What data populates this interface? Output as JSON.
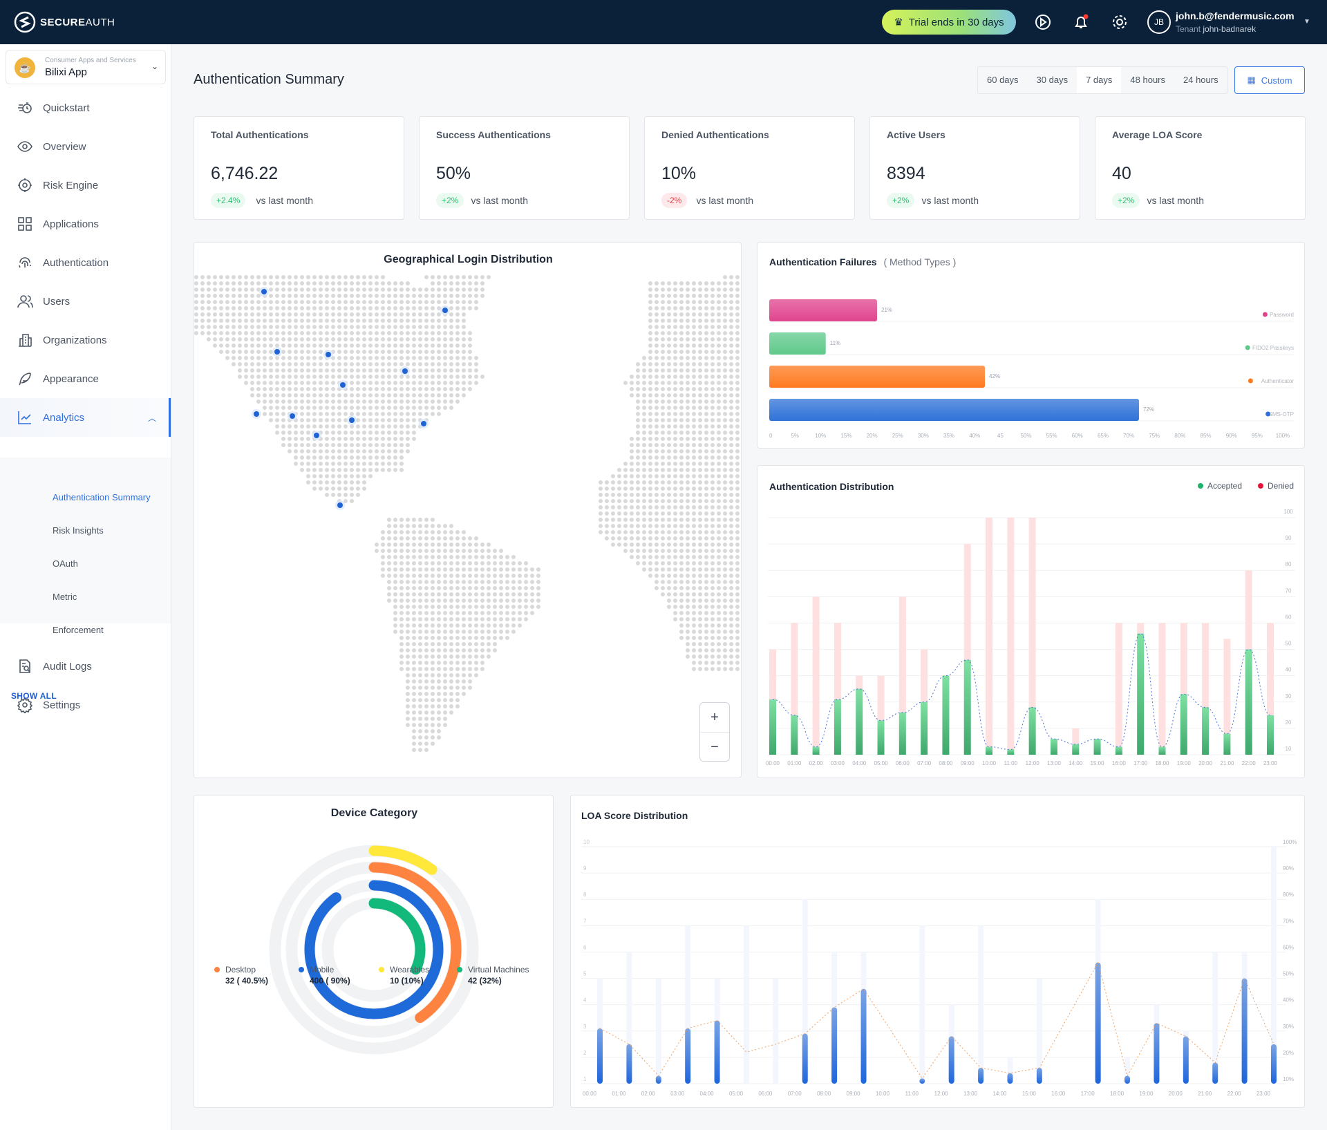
{
  "header": {
    "brand_bold": "SECURE",
    "brand_light": "AUTH",
    "trial": "Trial ends in 30 days",
    "user_initials": "JB",
    "user_email": "john.b@fendermusic.com",
    "tenant_label": "Tenant",
    "tenant": "john-badnarek",
    "icons": [
      "crown-icon",
      "play-icon",
      "bell-icon",
      "gear-icon"
    ]
  },
  "sidebar": {
    "app_category": "Consumer Apps and Services",
    "app_name": "Bilixi App",
    "items": [
      {
        "label": "Quickstart",
        "icon": "quickstart-icon"
      },
      {
        "label": "Overview",
        "icon": "eye-icon"
      },
      {
        "label": "Risk Engine",
        "icon": "risk-engine-icon"
      },
      {
        "label": "Applications",
        "icon": "grid-icon"
      },
      {
        "label": "Authentication",
        "icon": "fingerprint-icon"
      },
      {
        "label": "Users",
        "icon": "users-icon"
      },
      {
        "label": "Organizations",
        "icon": "building-icon"
      },
      {
        "label": "Appearance",
        "icon": "feather-icon"
      },
      {
        "label": "Analytics",
        "icon": "chart-line-icon",
        "active": true
      }
    ],
    "subitems": [
      "Authentication Summary",
      "Risk Insights",
      "OAuth",
      "Metric",
      "Enforcement"
    ],
    "bottom": [
      {
        "label": "Audit Logs",
        "icon": "audit-icon"
      },
      {
        "label": "Settings",
        "icon": "gear-icon"
      }
    ],
    "show_all": "SHOW ALL"
  },
  "page": {
    "title": "Authentication Summary",
    "ranges": [
      "60 days",
      "30 days",
      "7 days",
      "48 hours",
      "24 hours"
    ],
    "selected_range": "7 days",
    "custom": "Custom"
  },
  "kpis": [
    {
      "label": "Total Authentications",
      "value": "6,746.22",
      "change": "+2.4%",
      "trend": "up",
      "vs": "vs last month"
    },
    {
      "label": "Success Authentications",
      "value": "50%",
      "change": "+2%",
      "trend": "up",
      "vs": "vs last month"
    },
    {
      "label": "Denied Authentications",
      "value": "10%",
      "change": "-2%",
      "trend": "down",
      "vs": "vs last month"
    },
    {
      "label": "Active Users",
      "value": "8394",
      "change": "+2%",
      "trend": "up",
      "vs": "vs last month"
    },
    {
      "label": "Average LOA Score",
      "value": "40",
      "change": "+2%",
      "trend": "up",
      "vs": "vs last month"
    }
  ],
  "map": {
    "title": "Geographical Login Distribution",
    "zoom_in": "+",
    "zoom_out": "−"
  },
  "chart_data": [
    {
      "type": "bar",
      "orientation": "horizontal",
      "title": "Authentication Failures",
      "subtitle": "( Method Types )",
      "categories": [
        "Password",
        "FIDO2 Passkeys",
        "Authenticator",
        "SMS-OTP"
      ],
      "values": [
        21,
        11,
        42,
        72
      ],
      "value_labels": [
        "21%",
        "11%",
        "42%",
        "72%"
      ],
      "colors": [
        "#e0448e",
        "#5fc98a",
        "#ff7a1f",
        "#2f72d8"
      ],
      "xticks": [
        "0",
        "5%",
        "10%",
        "15%",
        "20%",
        "25%",
        "30%",
        "35%",
        "40%",
        "45",
        "50%",
        "55%",
        "60%",
        "65%",
        "70%",
        "75%",
        "80%",
        "85%",
        "90%",
        "95%",
        "100%"
      ],
      "xlim": [
        0,
        100
      ],
      "legend": "right"
    },
    {
      "type": "bar",
      "title": "Authentication Distribution",
      "categories": [
        "00:00",
        "01:00",
        "02:00",
        "03:00",
        "04:00",
        "05:00",
        "06:00",
        "07:00",
        "08:00",
        "09:00",
        "10:00",
        "11:00",
        "12:00",
        "13:00",
        "14:00",
        "15:00",
        "16:00",
        "17:00",
        "18:00",
        "19:00",
        "20:00",
        "21:00",
        "22:00",
        "23:00"
      ],
      "series": [
        {
          "name": "Accepted",
          "color": "#1db36b",
          "values": [
            31,
            25,
            13,
            31,
            35,
            23,
            26,
            30,
            40,
            46,
            13,
            12,
            28,
            16,
            14,
            16,
            13,
            56,
            13,
            33,
            28,
            18,
            50,
            25
          ]
        },
        {
          "name": "Denied",
          "color": "#e5173f",
          "values": [
            50,
            60,
            70,
            60,
            40,
            40,
            70,
            50,
            40,
            90,
            100,
            100,
            100,
            16,
            20,
            16,
            60,
            60,
            60,
            60,
            60,
            54,
            80,
            60
          ]
        }
      ],
      "yticks": [
        "10",
        "20",
        "30",
        "40",
        "50",
        "60",
        "70",
        "80",
        "90",
        "100"
      ],
      "ylim": [
        10,
        100
      ],
      "legend": "top-right",
      "trend_line": "dotted"
    },
    {
      "type": "radial-bar",
      "title": "Device Category",
      "series": [
        {
          "name": "Wearables",
          "count": "10 (10%)",
          "percent": 10,
          "color": "#ffe83a"
        },
        {
          "name": "Desktop",
          "count": "32 ( 40.5%)",
          "percent": 40.5,
          "color": "#ff8340"
        },
        {
          "name": "Mobile",
          "count": "400 ( 90%)",
          "percent": 90,
          "color": "#1d6ad8"
        },
        {
          "name": "Virtual Machines",
          "count": "42 (32%)",
          "percent": 32,
          "color": "#12b97a"
        }
      ],
      "legend_order": [
        1,
        2,
        0,
        3
      ]
    },
    {
      "type": "bar",
      "title": "LOA Score Distribution",
      "categories": [
        "00:00",
        "01:00",
        "02:00",
        "03:00",
        "04:00",
        "05:00",
        "06:00",
        "07:00",
        "08:00",
        "09:00",
        "10:00",
        "11:00",
        "12:00",
        "13:00",
        "14:00",
        "15:00",
        "16:00",
        "17:00",
        "18:00",
        "19:00",
        "20:00",
        "21:00",
        "22:00",
        "23:00"
      ],
      "score": [
        3.1,
        2.5,
        1.3,
        3.1,
        3.4,
        2.2,
        2.5,
        2.9,
        3.9,
        4.6,
        null,
        1.2,
        2.8,
        1.6,
        1.4,
        1.6,
        null,
        5.6,
        1.3,
        3.3,
        2.8,
        1.8,
        5.0,
        2.5
      ],
      "max": [
        5,
        6,
        5,
        7,
        5,
        7,
        5,
        8,
        6,
        6,
        null,
        7,
        4,
        7,
        2,
        5,
        null,
        8,
        2,
        4,
        3,
        6,
        6,
        10
      ],
      "yticks_left": [
        "1",
        "2",
        "3",
        "4",
        "5",
        "6",
        "7",
        "8",
        "9",
        "10"
      ],
      "yticks_right": [
        "10%",
        "20%",
        "30%",
        "40%",
        "50%",
        "60%",
        "70%",
        "80%",
        "90%",
        "100%"
      ],
      "ylim": [
        1,
        10
      ],
      "color": "#2a6fdb",
      "trend_color": "#f0a060"
    }
  ]
}
